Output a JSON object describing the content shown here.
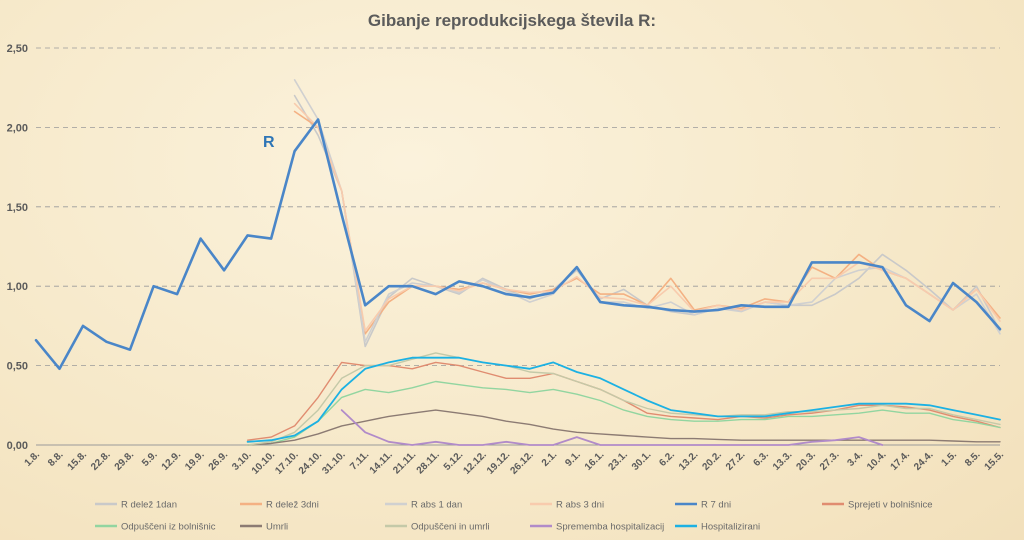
{
  "chart_data": {
    "type": "line",
    "title": "Gibanje reprodukcijskega števila R:",
    "annotation": "R",
    "ylim": [
      0,
      2.5
    ],
    "yticks": [
      "0,00",
      "0,50",
      "1,00",
      "1,50",
      "2,00",
      "2,50"
    ],
    "grid": "horizontal dashed",
    "legend_position": "bottom",
    "x_tick_labels": [
      "1.8.",
      "8.8.",
      "15.8.",
      "22.8.",
      "29.8.",
      "5.9.",
      "12.9.",
      "19.9.",
      "26.9.",
      "3.10.",
      "10.10.",
      "17.10.",
      "24.10.",
      "31.10.",
      "7.11.",
      "14.11.",
      "21.11.",
      "28.11.",
      "5.12.",
      "12.12.",
      "19.12.",
      "26.12.",
      "2.1.",
      "9.1.",
      "16.1.",
      "23.1.",
      "30.1.",
      "6.2.",
      "13.2.",
      "20.2.",
      "27.2.",
      "6.3.",
      "13.3.",
      "20.3.",
      "27.3.",
      "3.4.",
      "10.4.",
      "17.4.",
      "24.4.",
      "1.5.",
      "8.5.",
      "15.5."
    ],
    "series": [
      {
        "name": "R delež 1dan",
        "color": "#c9c9c9",
        "width": 1.6,
        "start": 11,
        "end": 41,
        "values": [
          2.2,
          1.95,
          1.6,
          0.62,
          0.93,
          1.05,
          1.0,
          0.95,
          1.05,
          0.98,
          0.92,
          0.98,
          1.1,
          0.92,
          0.98,
          0.88,
          0.84,
          0.82,
          0.86,
          0.85,
          0.9,
          0.88,
          0.88,
          0.95,
          1.05,
          1.2,
          1.1,
          0.98,
          0.85,
          1.0,
          0.72
        ]
      },
      {
        "name": "R delež 3dni",
        "color": "#f4b183",
        "width": 1.6,
        "start": 11,
        "end": 41,
        "values": [
          2.1,
          2.0,
          1.6,
          0.7,
          0.9,
          1.0,
          1.0,
          0.98,
          1.02,
          0.98,
          0.95,
          0.98,
          1.05,
          0.95,
          0.95,
          0.88,
          1.05,
          0.85,
          0.88,
          0.86,
          0.92,
          0.9,
          1.12,
          1.05,
          1.2,
          1.1,
          1.05,
          0.95,
          0.85,
          0.98,
          0.8
        ]
      },
      {
        "name": "R abs 1 dan",
        "color": "#d0d0d0",
        "width": 1.6,
        "start": 11,
        "end": 41,
        "values": [
          2.3,
          2.05,
          1.6,
          0.65,
          0.95,
          1.02,
          1.0,
          0.96,
          1.04,
          0.97,
          0.9,
          0.95,
          1.12,
          0.9,
          0.9,
          0.86,
          0.9,
          0.82,
          0.86,
          0.84,
          0.9,
          0.88,
          0.9,
          1.05,
          1.1,
          1.12,
          1.05,
          0.95,
          0.85,
          0.95,
          0.7
        ]
      },
      {
        "name": "R abs 3 dni",
        "color": "#f8cbad",
        "width": 1.6,
        "start": 11,
        "end": 41,
        "values": [
          2.15,
          2.0,
          1.6,
          0.72,
          0.92,
          1.0,
          1.0,
          0.97,
          1.02,
          0.98,
          0.96,
          0.97,
          1.06,
          0.93,
          0.92,
          0.88,
          1.0,
          0.84,
          0.88,
          0.85,
          0.9,
          0.9,
          1.05,
          1.05,
          1.15,
          1.1,
          1.05,
          0.95,
          0.85,
          0.98,
          0.78
        ]
      },
      {
        "name": "R 7 dni",
        "color": "#4a86c8",
        "width": 2.6,
        "start": 0,
        "end": 41,
        "values": [
          0.66,
          0.48,
          0.75,
          0.65,
          0.6,
          1.0,
          0.95,
          1.3,
          1.1,
          1.32,
          1.3,
          1.85,
          2.05,
          1.45,
          0.88,
          1.0,
          1.0,
          0.95,
          1.03,
          1.0,
          0.95,
          0.93,
          0.96,
          1.12,
          0.9,
          0.88,
          0.87,
          0.85,
          0.84,
          0.85,
          0.88,
          0.87,
          0.87,
          1.15,
          1.15,
          1.15,
          1.12,
          0.88,
          0.78,
          1.02,
          0.9,
          0.73
        ]
      },
      {
        "name": "Sprejeti v bolnišnice",
        "color": "#e08c70",
        "width": 1.4,
        "start": 9,
        "end": 41,
        "values": [
          0.03,
          0.05,
          0.12,
          0.3,
          0.52,
          0.5,
          0.5,
          0.48,
          0.52,
          0.5,
          0.46,
          0.42,
          0.42,
          0.45,
          0.4,
          0.35,
          0.28,
          0.2,
          0.18,
          0.17,
          0.16,
          0.18,
          0.17,
          0.19,
          0.2,
          0.22,
          0.25,
          0.25,
          0.24,
          0.22,
          0.18,
          0.15,
          0.11
        ]
      },
      {
        "name": "Odpuščeni iz bolnišnic",
        "color": "#92d5a0",
        "width": 1.4,
        "start": 9,
        "end": 41,
        "values": [
          0.0,
          0.01,
          0.05,
          0.15,
          0.3,
          0.35,
          0.33,
          0.36,
          0.4,
          0.38,
          0.36,
          0.35,
          0.33,
          0.35,
          0.32,
          0.28,
          0.22,
          0.18,
          0.16,
          0.15,
          0.15,
          0.16,
          0.16,
          0.18,
          0.18,
          0.19,
          0.2,
          0.22,
          0.2,
          0.2,
          0.16,
          0.14,
          0.11
        ]
      },
      {
        "name": "Umrli",
        "color": "#8c7b73",
        "width": 1.4,
        "start": 9,
        "end": 41,
        "values": [
          0.0,
          0.01,
          0.03,
          0.07,
          0.12,
          0.15,
          0.18,
          0.2,
          0.22,
          0.2,
          0.18,
          0.15,
          0.13,
          0.1,
          0.08,
          0.07,
          0.06,
          0.05,
          0.04,
          0.04,
          0.035,
          0.03,
          0.03,
          0.03,
          0.03,
          0.03,
          0.03,
          0.03,
          0.03,
          0.03,
          0.025,
          0.02,
          0.02
        ]
      },
      {
        "name": "Odpuščeni in umrli",
        "color": "#c4c9a8",
        "width": 1.4,
        "start": 9,
        "end": 41,
        "values": [
          0.0,
          0.02,
          0.08,
          0.22,
          0.42,
          0.5,
          0.5,
          0.54,
          0.58,
          0.55,
          0.52,
          0.5,
          0.46,
          0.45,
          0.4,
          0.35,
          0.28,
          0.23,
          0.2,
          0.19,
          0.18,
          0.19,
          0.19,
          0.21,
          0.21,
          0.22,
          0.23,
          0.25,
          0.23,
          0.23,
          0.19,
          0.16,
          0.13
        ]
      },
      {
        "name": "Sprememba hospitalizacij",
        "color": "#b18bc9",
        "width": 1.8,
        "start": 13,
        "end": 36,
        "values": [
          0.22,
          0.08,
          0.02,
          0.0,
          0.02,
          0.0,
          0.0,
          0.02,
          0.0,
          0.0,
          0.05,
          0.0,
          0.0,
          0.0,
          0.0,
          0.0,
          0.0,
          0.0,
          0.0,
          0.0,
          0.02,
          0.03,
          0.05,
          0.0
        ]
      },
      {
        "name": "Hospitalizirani",
        "color": "#1cb1e3",
        "width": 1.8,
        "start": 9,
        "end": 41,
        "values": [
          0.02,
          0.03,
          0.06,
          0.15,
          0.35,
          0.48,
          0.52,
          0.55,
          0.55,
          0.55,
          0.52,
          0.5,
          0.48,
          0.52,
          0.46,
          0.42,
          0.35,
          0.28,
          0.22,
          0.2,
          0.18,
          0.18,
          0.18,
          0.2,
          0.22,
          0.24,
          0.26,
          0.26,
          0.26,
          0.25,
          0.22,
          0.19,
          0.16
        ]
      }
    ]
  }
}
